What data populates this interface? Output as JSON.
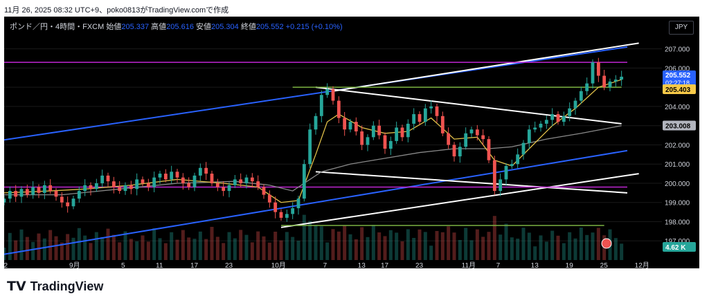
{
  "caption": "11月 26, 2025 08:32 UTC+9、poko0813がTradingView.comで作成",
  "legend": {
    "symbol": "ポンド／円・4時間・FXCM",
    "open_label": "始値",
    "open": "205.337",
    "high_label": "高値",
    "high": "205.616",
    "low_label": "安値",
    "low": "205.304",
    "close_label": "終値",
    "close": "205.552",
    "change": "+0.215 (+0.10%)"
  },
  "currency": "JPY",
  "footer": {
    "brand": "TradingView",
    "logo_icon": "tradingview-logo-icon"
  },
  "colors": {
    "up": "#26a69a",
    "down": "#ef5350",
    "blue": "#2962ff",
    "magenta": "#c026d3",
    "green": "#7cb342",
    "white": "#ffffff",
    "ma_fast": "#e0c049",
    "ma_slow": "#8a8a8a"
  },
  "chart_data": {
    "type": "candlestick",
    "ylim": [
      196.0,
      207.6
    ],
    "y_ticks": [
      "207.000",
      "206.000",
      "205.000",
      "204.000",
      "203.000",
      "202.000",
      "201.000",
      "200.000",
      "199.000",
      "198.000",
      "197.000"
    ],
    "x_ticks": [
      {
        "label": "22",
        "x": 0
      },
      {
        "label": "9月",
        "x": 12
      },
      {
        "label": "5",
        "x": 21
      },
      {
        "label": "11",
        "x": 27
      },
      {
        "label": "17",
        "x": 33
      },
      {
        "label": "23",
        "x": 39
      },
      {
        "label": "10月",
        "x": 47
      },
      {
        "label": "7",
        "x": 56
      },
      {
        "label": "13",
        "x": 62
      },
      {
        "label": "17",
        "x": 66
      },
      {
        "label": "23",
        "x": 72
      },
      {
        "label": "11月",
        "x": 80
      },
      {
        "label": "7",
        "x": 86
      },
      {
        "label": "13",
        "x": 92
      },
      {
        "label": "19",
        "x": 98
      },
      {
        "label": "25",
        "x": 104
      },
      {
        "label": "12月",
        "x": 110
      }
    ],
    "x_range": [
      0,
      114
    ],
    "price_labels": {
      "current": "205.552",
      "countdown": "02:27:18",
      "ma_fast_value": "205.403",
      "ma_slow_value": "203.008",
      "volume": "4.62 K"
    },
    "closes": [
      [
        0,
        199.2
      ],
      [
        1,
        199.6
      ],
      [
        2,
        199.3
      ],
      [
        3,
        199.7
      ],
      [
        4,
        199.4
      ],
      [
        5,
        199.8
      ],
      [
        6,
        199.5
      ],
      [
        7,
        199.9
      ],
      [
        8,
        199.6
      ],
      [
        9,
        199.3
      ],
      [
        10,
        199.0
      ],
      [
        11,
        198.8
      ],
      [
        12,
        199.2
      ],
      [
        13,
        199.6
      ],
      [
        14,
        199.9
      ],
      [
        15,
        199.7
      ],
      [
        16,
        200.0
      ],
      [
        17,
        200.4
      ],
      [
        18,
        200.1
      ],
      [
        19,
        199.8
      ],
      [
        20,
        199.6
      ],
      [
        21,
        199.9
      ],
      [
        22,
        199.7
      ],
      [
        23,
        200.2
      ],
      [
        24,
        200.0
      ],
      [
        25,
        199.8
      ],
      [
        26,
        200.3
      ],
      [
        27,
        200.5
      ],
      [
        28,
        200.2
      ],
      [
        29,
        200.6
      ],
      [
        30,
        200.3
      ],
      [
        31,
        200.0
      ],
      [
        32,
        199.8
      ],
      [
        33,
        200.4
      ],
      [
        34,
        200.8
      ],
      [
        35,
        200.5
      ],
      [
        36,
        200.0
      ],
      [
        37,
        199.8
      ],
      [
        38,
        199.6
      ],
      [
        39,
        199.9
      ],
      [
        40,
        200.2
      ],
      [
        41,
        200.0
      ],
      [
        42,
        200.3
      ],
      [
        43,
        200.1
      ],
      [
        44,
        199.8
      ],
      [
        45,
        199.4
      ],
      [
        46,
        199.0
      ],
      [
        47,
        198.5
      ],
      [
        48,
        198.2
      ],
      [
        49,
        198.4
      ],
      [
        50,
        198.7
      ],
      [
        51,
        199.2
      ],
      [
        52,
        201.0
      ],
      [
        53,
        202.8
      ],
      [
        54,
        203.5
      ],
      [
        55,
        204.6
      ],
      [
        56,
        204.9
      ],
      [
        57,
        204.3
      ],
      [
        58,
        203.4
      ],
      [
        59,
        202.8
      ],
      [
        60,
        203.2
      ],
      [
        61,
        202.7
      ],
      [
        62,
        202.0
      ],
      [
        63,
        202.4
      ],
      [
        64,
        203.0
      ],
      [
        65,
        202.5
      ],
      [
        66,
        201.8
      ],
      [
        67,
        202.2
      ],
      [
        68,
        202.9
      ],
      [
        69,
        202.4
      ],
      [
        70,
        203.1
      ],
      [
        71,
        203.6
      ],
      [
        72,
        203.2
      ],
      [
        73,
        203.9
      ],
      [
        74,
        204.0
      ],
      [
        75,
        203.5
      ],
      [
        76,
        202.6
      ],
      [
        77,
        202.0
      ],
      [
        78,
        201.4
      ],
      [
        79,
        201.9
      ],
      [
        80,
        202.6
      ],
      [
        81,
        202.8
      ],
      [
        82,
        202.5
      ],
      [
        83,
        202.3
      ],
      [
        84,
        201.2
      ],
      [
        85,
        199.6
      ],
      [
        86,
        200.2
      ],
      [
        87,
        200.9
      ],
      [
        88,
        201.0
      ],
      [
        89,
        201.5
      ],
      [
        90,
        202.1
      ],
      [
        91,
        202.8
      ],
      [
        92,
        202.9
      ],
      [
        93,
        203.1
      ],
      [
        94,
        203.3
      ],
      [
        95,
        203.6
      ],
      [
        96,
        203.2
      ],
      [
        97,
        203.5
      ],
      [
        98,
        203.9
      ],
      [
        99,
        204.3
      ],
      [
        100,
        204.8
      ],
      [
        101,
        205.2
      ],
      [
        102,
        206.3
      ],
      [
        103,
        205.6
      ],
      [
        104,
        205.0
      ],
      [
        105,
        205.3
      ],
      [
        106,
        205.4
      ],
      [
        107,
        205.55
      ]
    ],
    "ma_fast": [
      [
        0,
        199.5
      ],
      [
        8,
        199.6
      ],
      [
        14,
        199.7
      ],
      [
        22,
        199.9
      ],
      [
        30,
        200.2
      ],
      [
        38,
        200.0
      ],
      [
        44,
        199.8
      ],
      [
        48,
        199.0
      ],
      [
        51,
        199.1
      ],
      [
        54,
        201.5
      ],
      [
        56,
        203.2
      ],
      [
        58,
        203.6
      ],
      [
        62,
        202.9
      ],
      [
        66,
        202.6
      ],
      [
        70,
        202.7
      ],
      [
        74,
        203.4
      ],
      [
        78,
        202.3
      ],
      [
        82,
        202.4
      ],
      [
        85,
        201.2
      ],
      [
        88,
        200.9
      ],
      [
        91,
        201.8
      ],
      [
        95,
        203.0
      ],
      [
        99,
        203.9
      ],
      [
        103,
        205.0
      ],
      [
        107,
        205.4
      ]
    ],
    "ma_slow": [
      [
        0,
        199.4
      ],
      [
        10,
        199.4
      ],
      [
        20,
        199.7
      ],
      [
        30,
        200.0
      ],
      [
        40,
        200.1
      ],
      [
        46,
        199.9
      ],
      [
        50,
        199.6
      ],
      [
        55,
        200.6
      ],
      [
        60,
        201.0
      ],
      [
        66,
        201.3
      ],
      [
        72,
        201.6
      ],
      [
        78,
        201.8
      ],
      [
        84,
        201.8
      ],
      [
        88,
        201.9
      ],
      [
        94,
        202.3
      ],
      [
        100,
        202.6
      ],
      [
        107,
        203.0
      ]
    ],
    "trendlines": [
      {
        "color": "blue",
        "points": [
          [
            -8,
            201.9
          ],
          [
            108,
            207.1
          ]
        ]
      },
      {
        "color": "blue",
        "points": [
          [
            -8,
            195.9
          ],
          [
            108,
            201.7
          ]
        ]
      },
      {
        "color": "white",
        "points": [
          [
            57,
            204.8
          ],
          [
            110,
            207.3
          ]
        ]
      },
      {
        "color": "white",
        "points": [
          [
            54,
            205.0
          ],
          [
            107,
            203.1
          ]
        ]
      },
      {
        "color": "white",
        "points": [
          [
            54,
            200.6
          ],
          [
            108,
            199.5
          ]
        ]
      },
      {
        "color": "white",
        "points": [
          [
            48,
            197.7
          ],
          [
            110,
            200.5
          ]
        ]
      },
      {
        "color": "magenta",
        "points": [
          [
            -8,
            206.3
          ],
          [
            108,
            206.3
          ]
        ]
      },
      {
        "color": "magenta",
        "points": [
          [
            -8,
            199.8
          ],
          [
            108,
            199.8
          ]
        ]
      },
      {
        "color": "green",
        "points": [
          [
            50,
            205.0
          ],
          [
            107,
            205.0
          ]
        ]
      },
      {
        "color": "green",
        "points": [
          [
            48,
            197.8
          ],
          [
            104,
            197.8
          ]
        ]
      }
    ]
  }
}
